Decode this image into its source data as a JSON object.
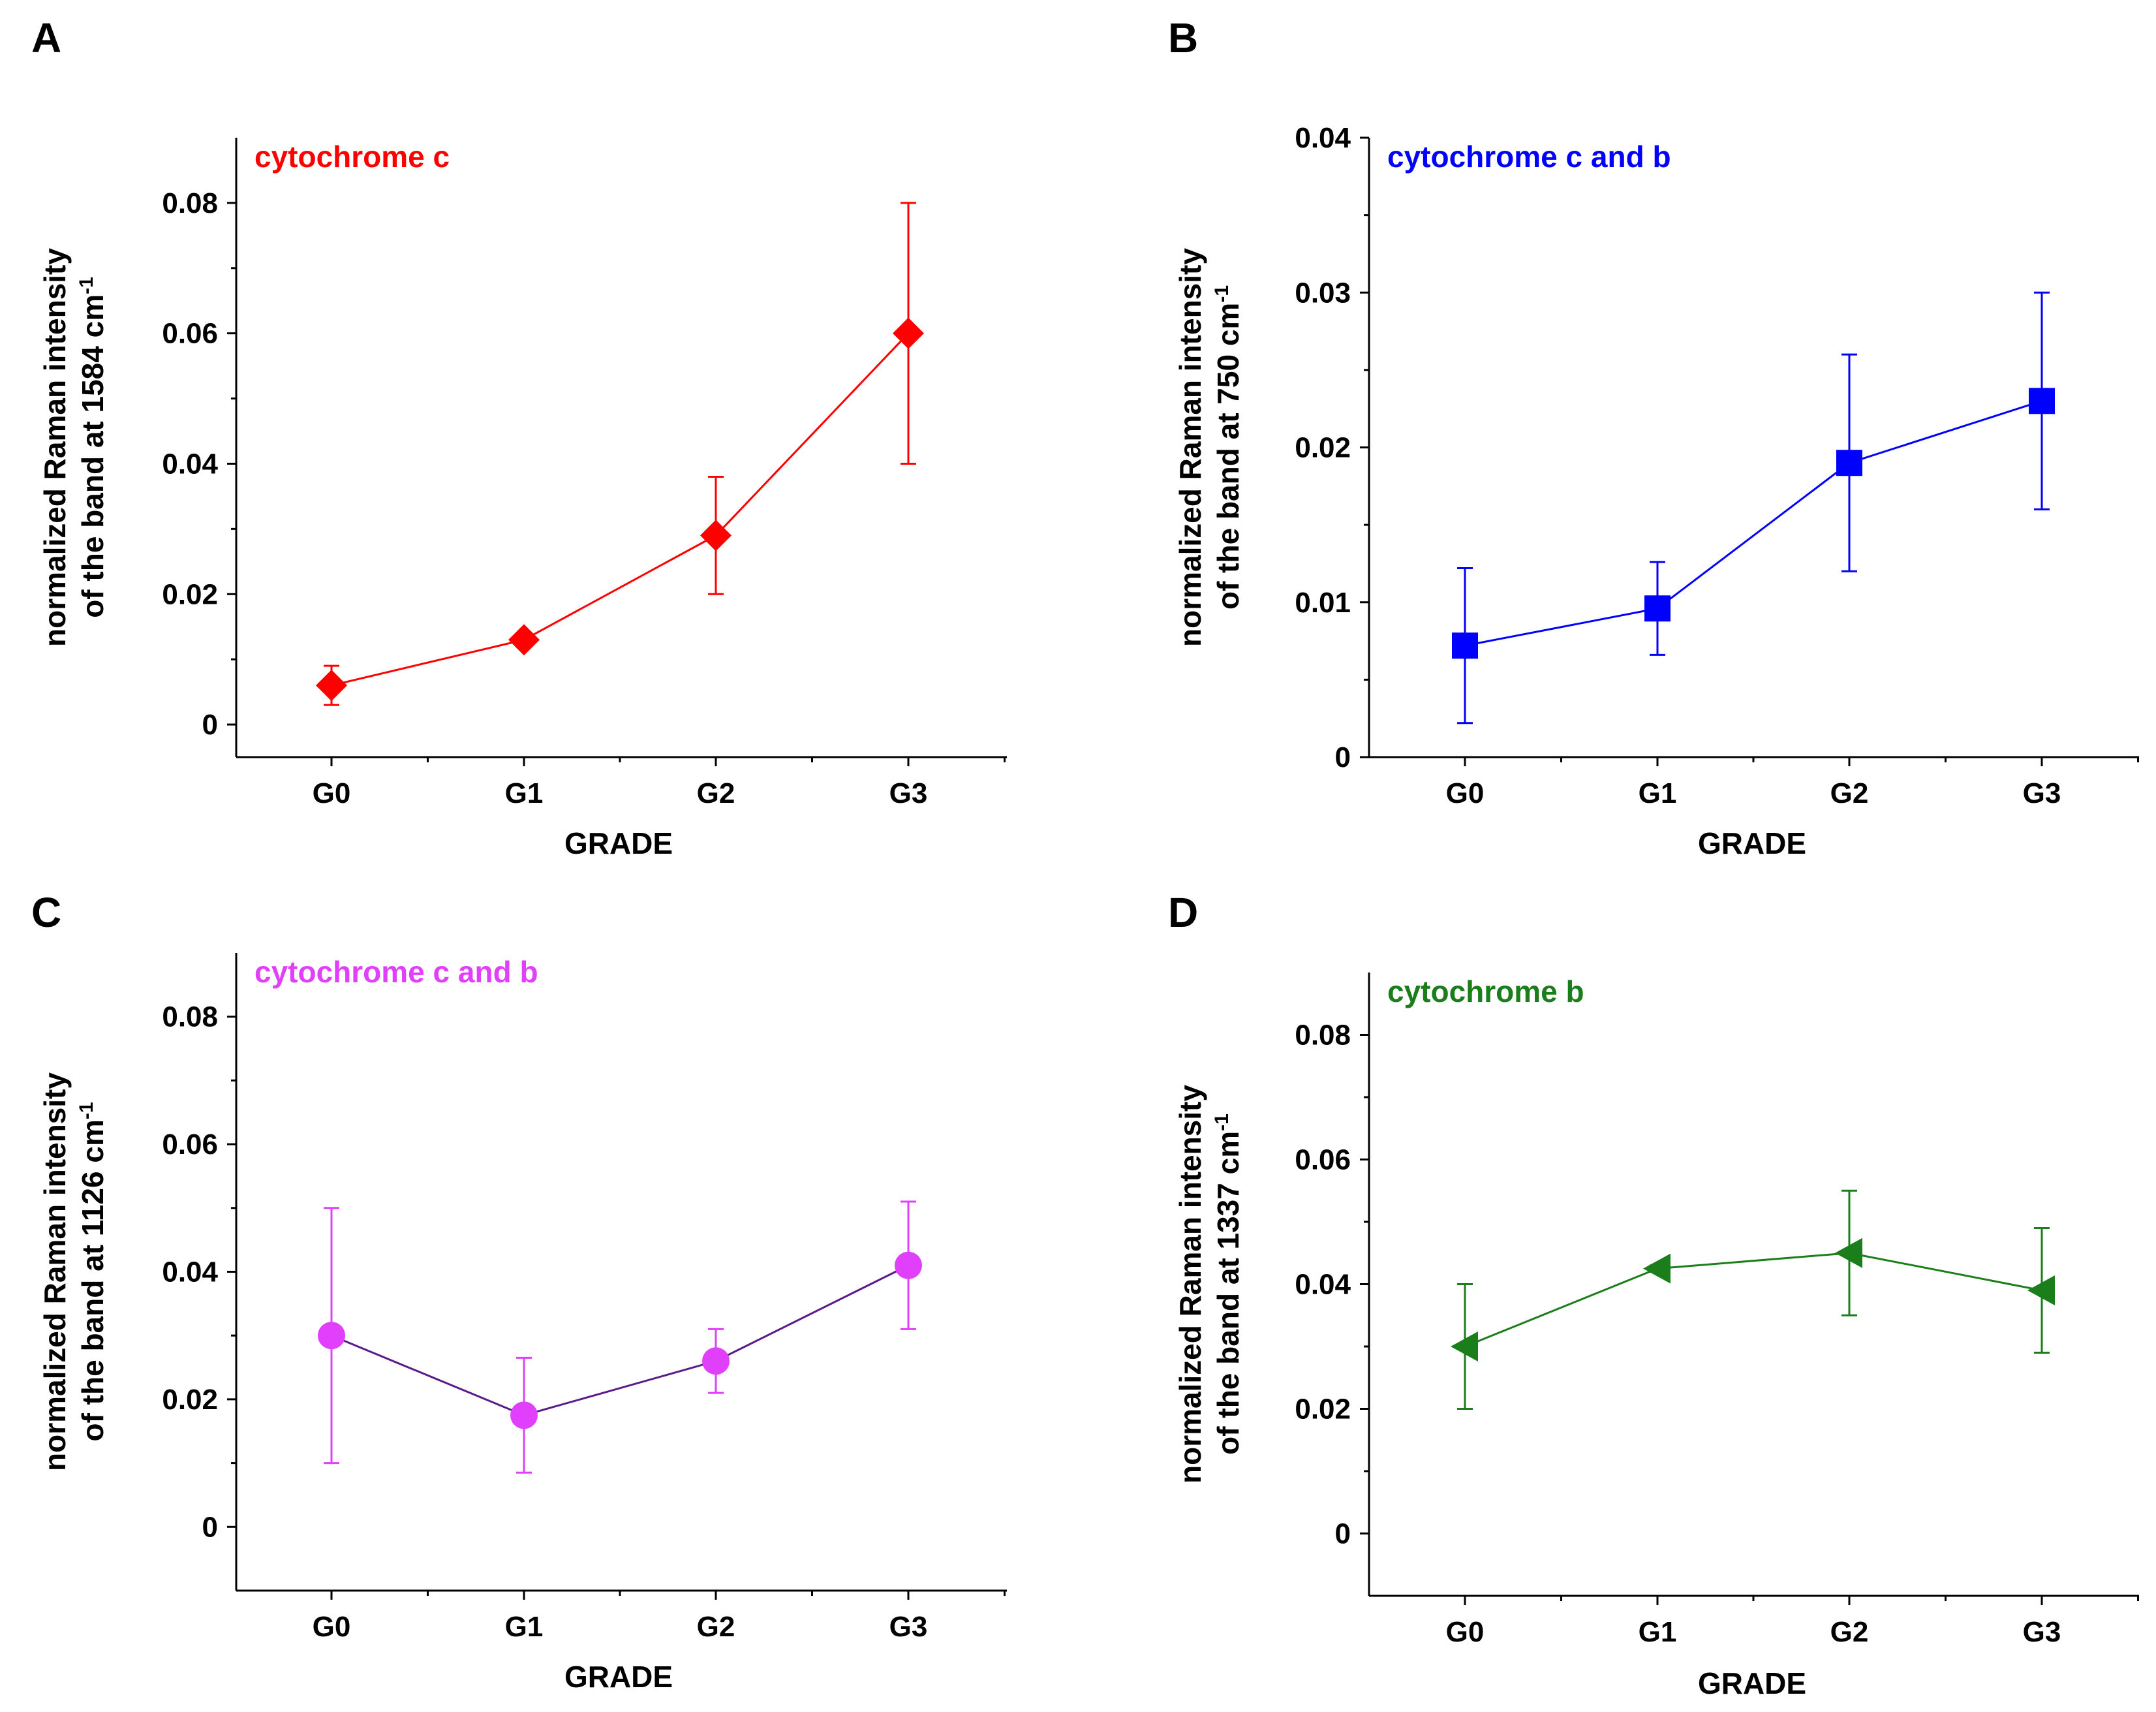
{
  "chart_data": [
    {
      "type": "line",
      "panel": "A",
      "legend": "cytochrome c",
      "color": "#ff0000",
      "marker": "diamond",
      "categories": [
        "G0",
        "G1",
        "G2",
        "G3"
      ],
      "values": [
        0.006,
        0.013,
        0.029,
        0.06
      ],
      "err_low": [
        0.003,
        0.012,
        0.02,
        0.04
      ],
      "err_high": [
        0.009,
        0.014,
        0.038,
        0.08
      ],
      "xlabel": "GRADE",
      "ylabel_line1": "normalized Raman intensity",
      "ylabel_line2": "of the band at 1584 cm",
      "ylabel_exp": "-1",
      "ylim": [
        -0.005,
        0.09
      ],
      "yticks": [
        0,
        0.02,
        0.04,
        0.06,
        0.08
      ],
      "ytick_labels": [
        "0",
        "0.02",
        "0.04",
        "0.06",
        "0.08"
      ]
    },
    {
      "type": "line",
      "panel": "B",
      "legend": "cytochrome c and b",
      "color": "#0000ff",
      "marker": "square",
      "categories": [
        "G0",
        "G1",
        "G2",
        "G3"
      ],
      "values": [
        0.0072,
        0.0096,
        0.019,
        0.023
      ],
      "err_low": [
        0.0022,
        0.0066,
        0.012,
        0.016
      ],
      "err_high": [
        0.0122,
        0.0126,
        0.026,
        0.03
      ],
      "xlabel": "GRADE",
      "ylabel_line1": "normalized Raman intensity",
      "ylabel_line2": "of the band at 750 cm",
      "ylabel_exp": "-1",
      "ylim": [
        0,
        0.04
      ],
      "yticks": [
        0,
        0.01,
        0.02,
        0.03,
        0.04
      ],
      "ytick_labels": [
        "0",
        "0.01",
        "0.02",
        "0.03",
        "0.04"
      ]
    },
    {
      "type": "line",
      "panel": "C",
      "legend": "cytochrome c and b",
      "color": "#e040fb",
      "line_color": "#5b1a8a",
      "marker": "circle",
      "categories": [
        "G0",
        "G1",
        "G2",
        "G3"
      ],
      "values": [
        0.03,
        0.0175,
        0.026,
        0.041
      ],
      "err_low": [
        0.01,
        0.0085,
        0.021,
        0.031
      ],
      "err_high": [
        0.05,
        0.0265,
        0.031,
        0.051
      ],
      "xlabel": "GRADE",
      "ylabel_line1": "normalized Raman intensity",
      "ylabel_line2": "of the band at 1126 cm",
      "ylabel_exp": "-1",
      "ylim": [
        -0.01,
        0.09
      ],
      "yticks": [
        0,
        0.02,
        0.04,
        0.06,
        0.08
      ],
      "ytick_labels": [
        "0",
        "0.02",
        "0.04",
        "0.06",
        "0.08"
      ]
    },
    {
      "type": "line",
      "panel": "D",
      "legend": "cytochrome b",
      "color": "#1a7f1a",
      "marker": "triangle-left",
      "categories": [
        "G0",
        "G1",
        "G2",
        "G3"
      ],
      "values": [
        0.03,
        0.0425,
        0.045,
        0.039
      ],
      "err_low": [
        0.02,
        0.042,
        0.035,
        0.029
      ],
      "err_high": [
        0.04,
        0.043,
        0.055,
        0.049
      ],
      "xlabel": "GRADE",
      "ylabel_line1": "normalized Raman intensity",
      "ylabel_line2": "of the band at 1337 cm",
      "ylabel_exp": "-1",
      "ylim": [
        -0.01,
        0.09
      ],
      "yticks": [
        0,
        0.02,
        0.04,
        0.06,
        0.08
      ],
      "ytick_labels": [
        "0",
        "0.02",
        "0.04",
        "0.06",
        "0.08"
      ]
    }
  ]
}
